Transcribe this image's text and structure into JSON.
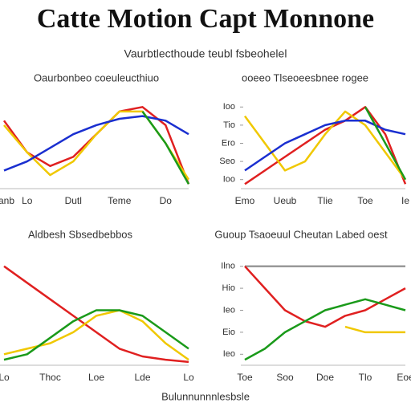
{
  "title": "Catte Motion Capt Monnone",
  "subtitle": "Vaurbtlecthoude teubl fsbeohelel",
  "footer": "Bulunnunnnlesbsle",
  "chart_data": [
    {
      "type": "line",
      "title": "Oaurbonbeo  coeuleucthiuo",
      "categories": [
        "Tanb",
        "Lo",
        null,
        "Dutl",
        null,
        "Teme",
        null,
        "Do",
        null
      ],
      "ylim": [
        0,
        10
      ],
      "series": [
        {
          "name": "red",
          "color": "#e02020",
          "values": [
            7.5,
            4,
            2.5,
            3.5,
            6,
            8.5,
            9,
            7,
            0.5
          ]
        },
        {
          "name": "yellow",
          "color": "#f0c800",
          "values": [
            7,
            4,
            1.5,
            3,
            6,
            8.5,
            8.5,
            5,
            1
          ]
        },
        {
          "name": "blue",
          "color": "#1a2fd0",
          "values": [
            2,
            3,
            4.5,
            6,
            7,
            7.7,
            8,
            7.5,
            6
          ]
        },
        {
          "name": "green",
          "color": "#1a9a1a",
          "values": [
            null,
            null,
            null,
            null,
            null,
            null,
            8.5,
            5,
            0.5
          ]
        }
      ]
    },
    {
      "type": "line",
      "title": "ooeeo  Tlseoeesbnee rogee",
      "categories": [
        "Emo",
        null,
        "Ueub",
        null,
        "Tlie",
        null,
        "Toe",
        null,
        "Ie"
      ],
      "ylim": [
        0,
        10
      ],
      "yticks": [
        {
          "value": 9,
          "label": "Ioo"
        },
        {
          "value": 7,
          "label": "Tio"
        },
        {
          "value": 5,
          "label": "Ero"
        },
        {
          "value": 3,
          "label": "Seo"
        },
        {
          "value": 1,
          "label": "Ioo"
        }
      ],
      "series": [
        {
          "name": "red",
          "color": "#e02020",
          "values": [
            0.5,
            2,
            3.5,
            5,
            6.5,
            7.5,
            9,
            6,
            0.5
          ]
        },
        {
          "name": "yellow",
          "color": "#f0c800",
          "values": [
            8,
            5,
            2,
            3,
            6,
            8.5,
            7,
            4,
            1
          ]
        },
        {
          "name": "blue",
          "color": "#1a2fd0",
          "values": [
            2,
            3.5,
            5,
            6,
            7,
            7.5,
            7.5,
            6.5,
            6
          ]
        },
        {
          "name": "green",
          "color": "#1a9a1a",
          "values": [
            null,
            null,
            null,
            null,
            null,
            null,
            9,
            5,
            1
          ]
        }
      ]
    },
    {
      "type": "line",
      "title": "Aldbesh Sbsedbebbos",
      "categories": [
        "Lo",
        null,
        "Thoc",
        null,
        "Loe",
        null,
        "Lde",
        null,
        "Lo"
      ],
      "ylim": [
        0,
        10
      ],
      "series": [
        {
          "name": "red",
          "color": "#e02020",
          "values": [
            9,
            7.5,
            6,
            4.5,
            3,
            1.5,
            0.8,
            0.5,
            0.3
          ]
        },
        {
          "name": "yellow",
          "color": "#f0c800",
          "values": [
            1,
            1.5,
            2,
            3,
            4.5,
            5,
            4,
            2,
            0.5
          ]
        },
        {
          "name": "green",
          "color": "#1a9a1a",
          "values": [
            0.5,
            1,
            2.5,
            4,
            5,
            5,
            4.5,
            3,
            1.5
          ]
        }
      ]
    },
    {
      "type": "line",
      "title": "Guoup Tsaoeuul Cheutan Labed oest",
      "categories": [
        "Toe",
        null,
        "Soo",
        null,
        "Doe",
        null,
        "Tlo",
        null,
        "Eoe"
      ],
      "ylim": [
        0,
        10
      ],
      "yticks": [
        {
          "value": 9,
          "label": "Ilno"
        },
        {
          "value": 7,
          "label": "Hio"
        },
        {
          "value": 5,
          "label": "Ieo"
        },
        {
          "value": 3,
          "label": "Eio"
        },
        {
          "value": 1,
          "label": "Ieo"
        }
      ],
      "series": [
        {
          "name": "gray",
          "color": "#999999",
          "values": [
            9,
            9,
            9,
            9,
            9,
            9,
            9,
            9,
            9
          ]
        },
        {
          "name": "red",
          "color": "#e02020",
          "values": [
            9,
            7,
            5,
            4,
            3.5,
            4.5,
            5,
            6,
            7
          ]
        },
        {
          "name": "yellow",
          "color": "#f0c800",
          "values": [
            null,
            null,
            null,
            null,
            null,
            3.5,
            3,
            3,
            3
          ]
        },
        {
          "name": "green",
          "color": "#1a9a1a",
          "values": [
            0.5,
            1.5,
            3,
            4,
            5,
            5.5,
            6,
            5.5,
            5
          ]
        }
      ]
    }
  ]
}
